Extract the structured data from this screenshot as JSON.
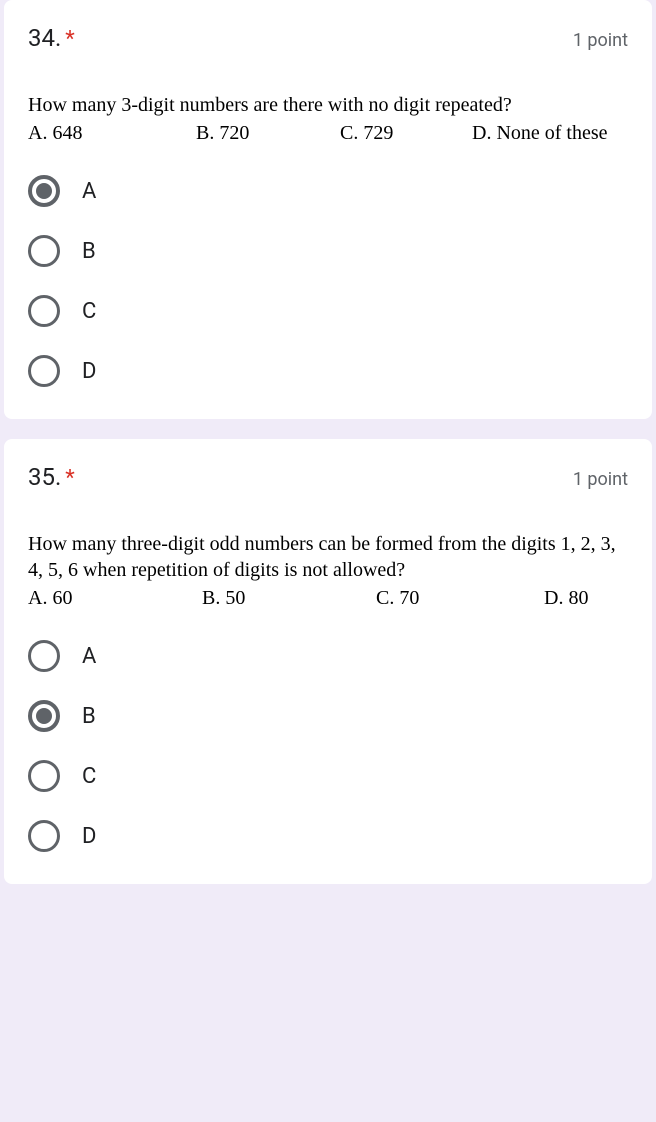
{
  "questions": [
    {
      "number": "34.",
      "required": "*",
      "points": "1 point",
      "text": "How many 3-digit numbers are there with no digit repeated?",
      "choices": [
        {
          "label": "A. 648",
          "width": "28%"
        },
        {
          "label": "B. 720",
          "width": "24%"
        },
        {
          "label": "C. 729",
          "width": "22%"
        },
        {
          "label": "D. None of these",
          "width": "26%"
        }
      ],
      "options": [
        "A",
        "B",
        "C",
        "D"
      ],
      "selected": 0
    },
    {
      "number": "35.",
      "required": "*",
      "points": "1 point",
      "text": "How many three-digit odd numbers can be formed from the digits 1, 2, 3, 4, 5, 6 when repetition of digits is not allowed?",
      "choices": [
        {
          "label": "A. 60",
          "width": "29%"
        },
        {
          "label": "B. 50",
          "width": "29%"
        },
        {
          "label": "C. 70",
          "width": "28%"
        },
        {
          "label": "D. 80",
          "width": "14%"
        }
      ],
      "options": [
        "A",
        "B",
        "C",
        "D"
      ],
      "selected": 1
    }
  ]
}
